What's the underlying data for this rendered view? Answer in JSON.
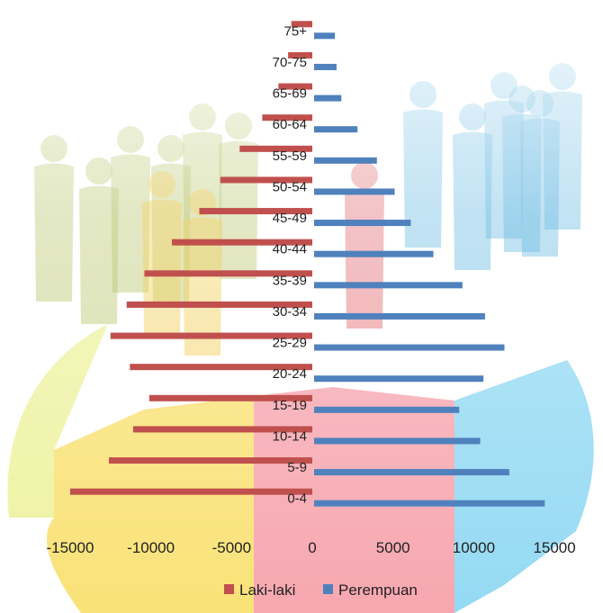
{
  "chart_data": {
    "type": "bar",
    "orientation": "horizontal",
    "categories": [
      "0-4",
      "5-9",
      "10-14",
      "15-19",
      "20-24",
      "25-29",
      "30-34",
      "35-39",
      "40-44",
      "45-49",
      "50-54",
      "55-59",
      "60-64",
      "65-69",
      "70-75",
      "75+"
    ],
    "series": [
      {
        "name": "Laki-laki",
        "color": "#c0504d",
        "values": [
          -15000,
          -12600,
          -11100,
          -10100,
          -11300,
          -12500,
          -11500,
          -10400,
          -8700,
          -7000,
          -5700,
          -4500,
          -3100,
          -2100,
          -1500,
          -1300
        ]
      },
      {
        "name": "Perempuan",
        "color": "#4f81bd",
        "values": [
          14400,
          12200,
          10400,
          9100,
          10600,
          11900,
          10700,
          9300,
          7500,
          6100,
          5100,
          4000,
          2800,
          1800,
          1500,
          1400
        ]
      }
    ],
    "x_ticks": [
      "-15000",
      "-10000",
      "-5000",
      "0",
      "5000",
      "10000",
      "15000"
    ],
    "xlim": [
      -16000,
      16500
    ],
    "title": "",
    "xlabel": "",
    "ylabel": "",
    "grid": false,
    "legend_position": "bottom"
  },
  "legend": {
    "items": [
      {
        "label": "Laki-laki",
        "color": "#c0504d"
      },
      {
        "label": "Perempuan",
        "color": "#4f81bd"
      }
    ]
  },
  "background": {
    "segment_colors": [
      "#e8ee80",
      "#f7d84a",
      "#f48a96",
      "#70cdef"
    ],
    "figure_colors": [
      "#9fb23a",
      "#eebd1c",
      "#d6343b",
      "#2e9fd8"
    ]
  }
}
